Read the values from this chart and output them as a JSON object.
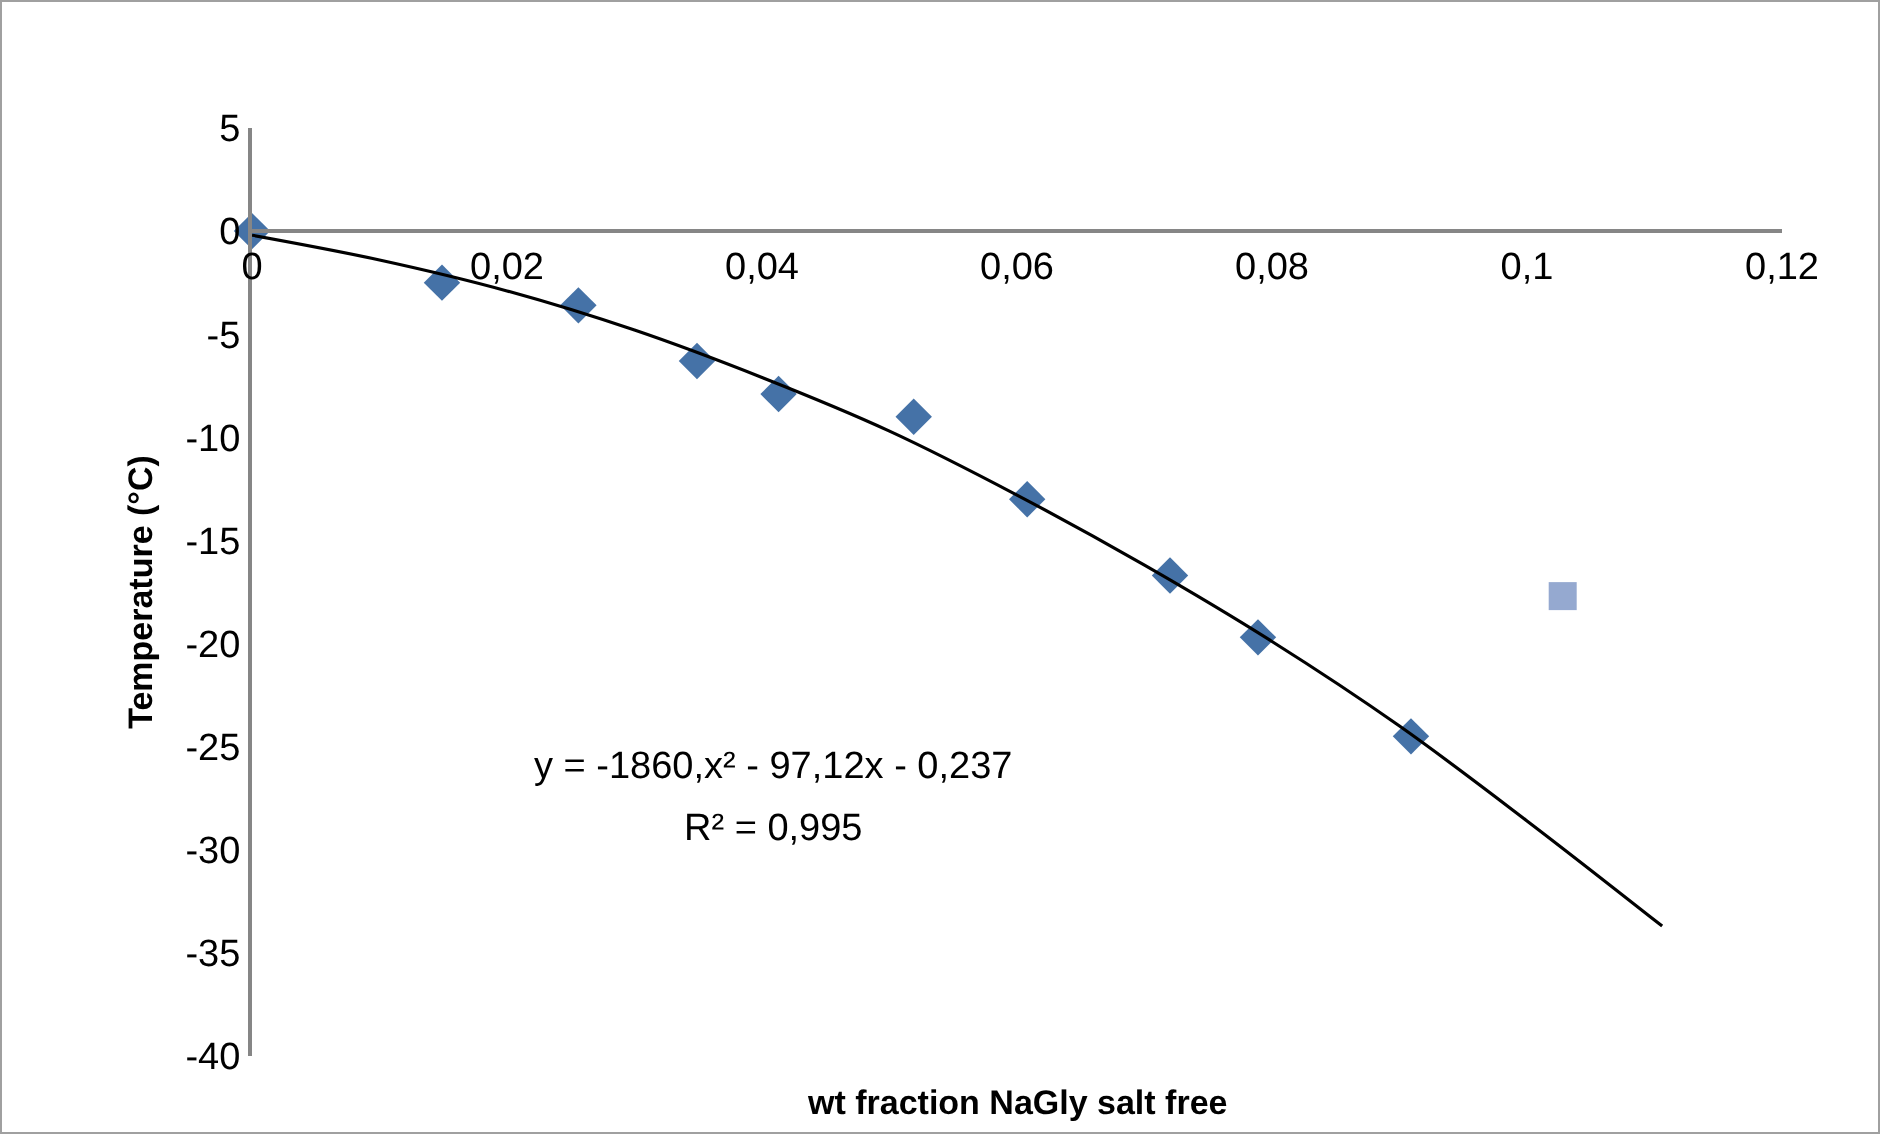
{
  "chart_data": {
    "type": "scatter",
    "xlabel": "wt fraction NaGly salt free",
    "ylabel": "Temperature (°C)",
    "annotations": [
      "y = -1860,x² - 97,12x - 0,237",
      "R² = 0,995"
    ],
    "xlim": [
      0,
      0.12
    ],
    "xticks": [
      0,
      {
        "value": 0.02,
        "label": "0,02"
      },
      {
        "value": 0.04,
        "label": "0,04"
      },
      {
        "value": 0.06,
        "label": "0,06"
      },
      {
        "value": 0.08,
        "label": "0,08"
      },
      {
        "value": 0.1,
        "label": "0,1"
      },
      {
        "value": 0.12,
        "label": "0,12"
      }
    ],
    "ylim": [
      -40,
      5
    ],
    "yticks": [
      5,
      0,
      -5,
      -10,
      -15,
      -20,
      -25,
      -30,
      -35,
      -40
    ],
    "grid": false,
    "series": [
      {
        "marker": "diamond",
        "color": "#4572a7",
        "x": [
          0,
          0.0149,
          0.0256,
          0.0349,
          0.0413,
          0.0519,
          0.0608,
          0.072,
          0.0789,
          0.0909
        ],
        "values": [
          0,
          -2.5,
          -3.6,
          -6.3,
          -7.9,
          -9.0,
          -13.0,
          -16.7,
          -19.7,
          -24.5
        ]
      },
      {
        "marker": "square",
        "color": "#95a9d0",
        "x": [
          0.1028
        ],
        "values": [
          -17.7
        ]
      },
      {
        "type": "line",
        "marker": "none",
        "line_style": "solid",
        "color": "#000000",
        "x": [
          0,
          0.01,
          0.02,
          0.03,
          0.04,
          0.05,
          0.06,
          0.07,
          0.08,
          0.09,
          0.1,
          0.1106
        ],
        "values": [
          -0.2,
          -1.4,
          -2.9,
          -4.8,
          -7.1,
          -9.7,
          -12.8,
          -16.2,
          -19.9,
          -24.0,
          -28.6,
          -33.7
        ]
      }
    ]
  }
}
